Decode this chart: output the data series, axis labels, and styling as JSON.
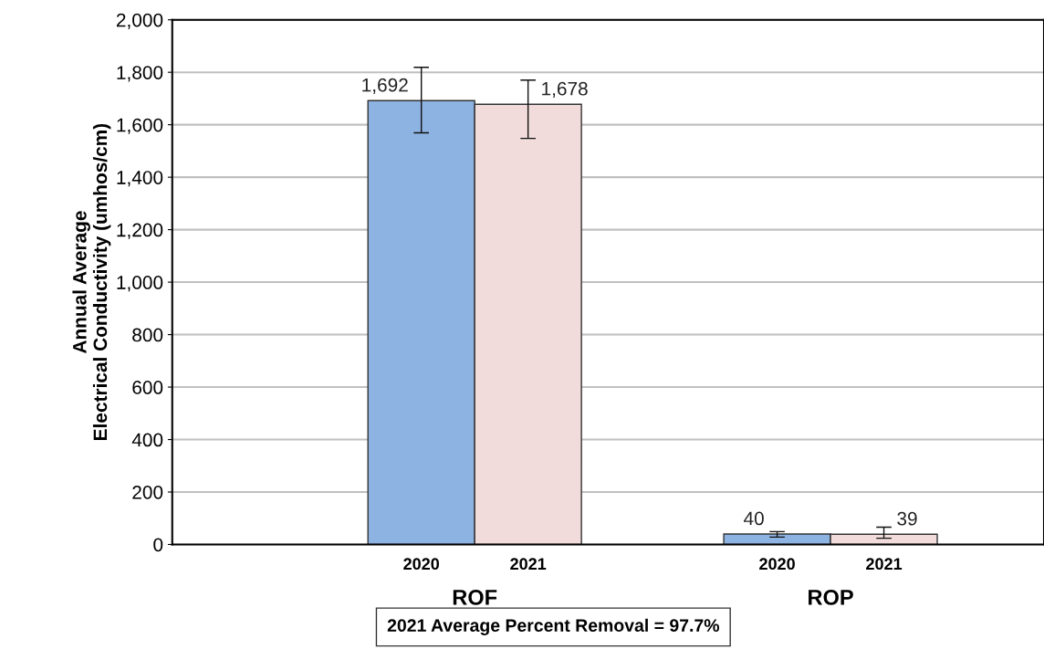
{
  "chart_data": {
    "type": "bar",
    "ylabel": "Annual Average\nElectrical Conductivity (umhos/cm)",
    "categories": [
      "ROF",
      "ROP"
    ],
    "series": [
      {
        "name": "2020",
        "color": "#8db3e2",
        "values": [
          1692,
          40
        ],
        "value_labels": [
          "1,692",
          "40"
        ],
        "errors": [
          [
            1569,
            1819
          ],
          [
            28,
            49
          ]
        ]
      },
      {
        "name": "2021",
        "color": "#f2dcdb",
        "values": [
          1678,
          39
        ],
        "value_labels": [
          "1,678",
          "39"
        ],
        "errors": [
          [
            1548,
            1770
          ],
          [
            24,
            66
          ]
        ]
      }
    ],
    "ylim": [
      0,
      2000
    ],
    "yticks": [
      {
        "value": 0,
        "label": "0"
      },
      {
        "value": 200,
        "label": "200"
      },
      {
        "value": 400,
        "label": "400"
      },
      {
        "value": 600,
        "label": "600"
      },
      {
        "value": 800,
        "label": "800"
      },
      {
        "value": 1000,
        "label": "1,000"
      },
      {
        "value": 1200,
        "label": "1,200"
      },
      {
        "value": 1400,
        "label": "1,400"
      },
      {
        "value": 1600,
        "label": "1,600"
      },
      {
        "value": 1800,
        "label": "1,800"
      },
      {
        "value": 2000,
        "label": "2,000"
      }
    ],
    "grid": "y",
    "legend": false,
    "annotations": [
      "2021 Average Percent Removal = 97.7%"
    ]
  }
}
